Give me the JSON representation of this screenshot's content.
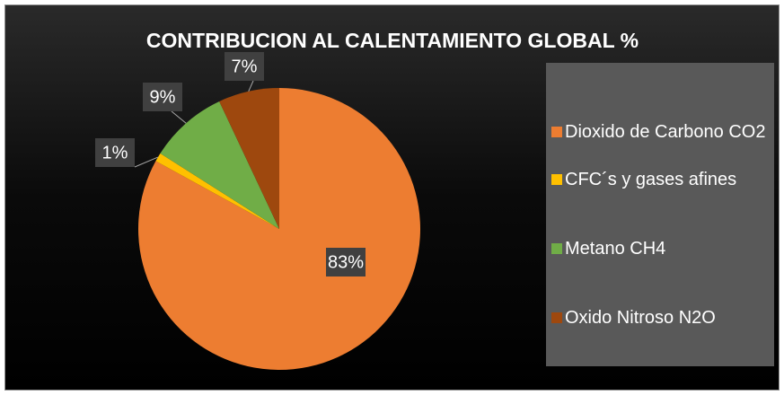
{
  "chart_data": {
    "type": "pie",
    "title": "CONTRIBUCION AL CALENTAMIENTO GLOBAL %",
    "categories": [
      "Dioxido de Carbono CO2",
      "CFC´s y gases afines",
      "Metano CH4",
      "Oxido Nitroso N2O"
    ],
    "values": [
      83,
      1,
      9,
      7
    ],
    "value_labels": [
      "83%",
      "1%",
      "9%",
      "7%"
    ],
    "colors": [
      "#ED7D31",
      "#FFC000",
      "#70AD47",
      "#9E480E"
    ],
    "legend": "right"
  }
}
